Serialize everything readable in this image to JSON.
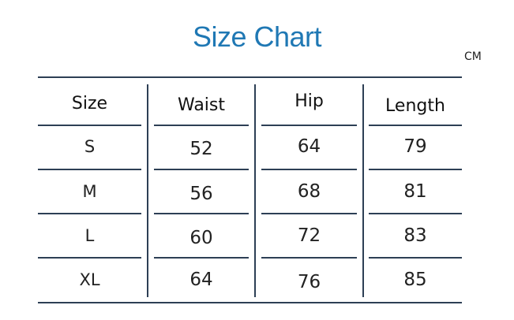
{
  "title": "Size Chart",
  "unit": "CM",
  "colors": {
    "title": "#1f78b4",
    "lines": "#2d3f55"
  },
  "table": {
    "headers": [
      "Size",
      "Waist",
      "Hip",
      "Length"
    ],
    "rows": [
      [
        "S",
        "52",
        "64",
        "79"
      ],
      [
        "M",
        "56",
        "68",
        "81"
      ],
      [
        "L",
        "60",
        "72",
        "83"
      ],
      [
        "XL",
        "64",
        "76",
        "85"
      ]
    ]
  }
}
